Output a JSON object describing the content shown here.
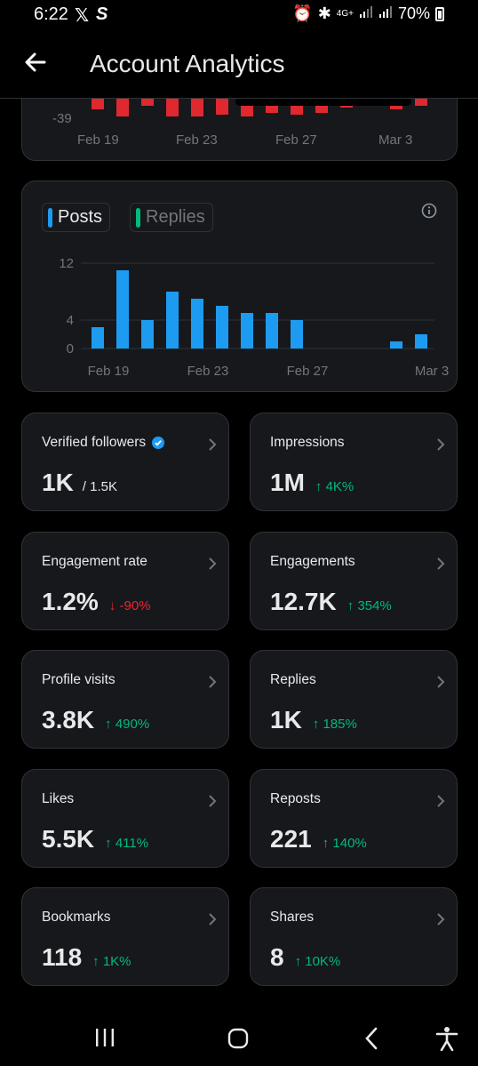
{
  "status_bar": {
    "time": "6:22",
    "network": "4G+",
    "battery": "70%"
  },
  "header": {
    "title": "Account Analytics"
  },
  "top_chart": {
    "y_tick": "-39",
    "x_ticks": [
      "Feb 19",
      "Feb 23",
      "Feb 27",
      "Mar 3"
    ]
  },
  "activity_chart": {
    "legend": {
      "posts": "Posts",
      "replies": "Replies"
    },
    "colors": {
      "posts": "#1d9bf0",
      "replies": "#00ba7c",
      "negative": "#e0282f"
    }
  },
  "chart_data": {
    "type": "bar",
    "categories": [
      "Feb 19",
      "Feb 20",
      "Feb 21",
      "Feb 22",
      "Feb 23",
      "Feb 24",
      "Feb 25",
      "Feb 26",
      "Feb 27",
      "Feb 28",
      "Feb 29",
      "Mar 1",
      "Mar 2",
      "Mar 3"
    ],
    "x_tick_labels": [
      "Feb 19",
      "Feb 23",
      "Feb 27",
      "Mar 3"
    ],
    "y_ticks": [
      "0",
      "4",
      "12"
    ],
    "ylim": [
      0,
      12
    ],
    "series": [
      {
        "name": "Posts",
        "values": [
          3,
          11,
          4,
          8,
          7,
          6,
          5,
          5,
          4,
          0,
          0,
          0,
          1,
          2
        ]
      },
      {
        "name": "Replies",
        "values": [
          0,
          0,
          0,
          0,
          0,
          0,
          0,
          0,
          0,
          0,
          0,
          0,
          0,
          0
        ]
      }
    ],
    "grid": true
  },
  "stats": [
    {
      "label": "Verified followers",
      "value": "1K",
      "sub": "/ 1.5K",
      "change": "",
      "dir": ""
    },
    {
      "label": "Impressions",
      "value": "1M",
      "sub": "",
      "change": "↑ 4K%",
      "dir": "up"
    },
    {
      "label": "Engagement rate",
      "value": "1.2%",
      "sub": "",
      "change": "↓ -90%",
      "dir": "down"
    },
    {
      "label": "Engagements",
      "value": "12.7K",
      "sub": "",
      "change": "↑ 354%",
      "dir": "up"
    },
    {
      "label": "Profile visits",
      "value": "3.8K",
      "sub": "",
      "change": "↑ 490%",
      "dir": "up"
    },
    {
      "label": "Replies",
      "value": "1K",
      "sub": "",
      "change": "↑ 185%",
      "dir": "up"
    },
    {
      "label": "Likes",
      "value": "5.5K",
      "sub": "",
      "change": "↑ 411%",
      "dir": "up"
    },
    {
      "label": "Reposts",
      "value": "221",
      "sub": "",
      "change": "↑ 140%",
      "dir": "up"
    },
    {
      "label": "Bookmarks",
      "value": "118",
      "sub": "",
      "change": "↑ 1K%",
      "dir": "up"
    },
    {
      "label": "Shares",
      "value": "8",
      "sub": "",
      "change": "↑ 10K%",
      "dir": "up"
    }
  ]
}
